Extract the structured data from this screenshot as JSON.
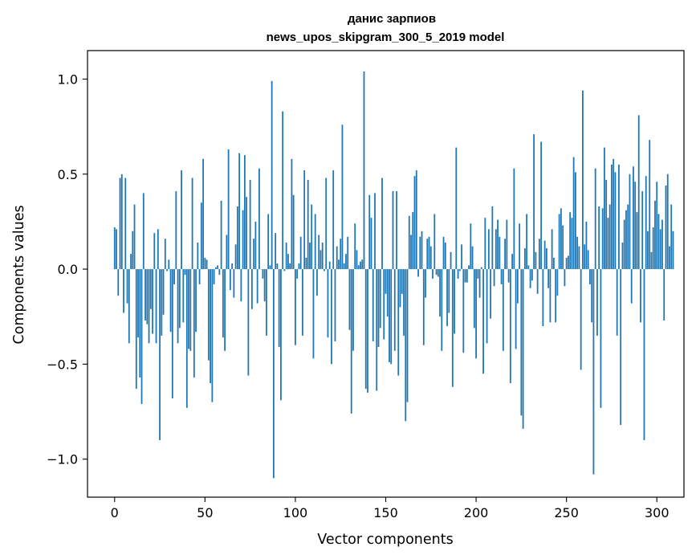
{
  "chart_data": {
    "type": "bar",
    "title_line1": "данис зарпиов",
    "title_line2": "news_upos_skipgram_300_5_2019 model",
    "xlabel": "Vector components",
    "ylabel": "Components values",
    "xlim": [
      -15,
      315
    ],
    "ylim": [
      -1.2,
      1.15
    ],
    "x_ticks": [
      0,
      50,
      100,
      150,
      200,
      250,
      300
    ],
    "y_ticks": [
      {
        "value": 1.0,
        "label": "1.0"
      },
      {
        "value": 0.5,
        "label": "0.5"
      },
      {
        "value": 0.0,
        "label": "0.0"
      },
      {
        "value": -0.5,
        "label": "−0.5"
      },
      {
        "value": -1.0,
        "label": "−1.0"
      }
    ],
    "color": "#1f77b4",
    "values": [
      0.22,
      0.21,
      -0.14,
      0.48,
      0.5,
      -0.23,
      0.48,
      -0.18,
      -0.39,
      0.08,
      0.2,
      0.34,
      -0.63,
      -0.36,
      -0.57,
      -0.71,
      0.4,
      -0.27,
      -0.29,
      -0.39,
      -0.21,
      -0.34,
      0.19,
      -0.39,
      0.21,
      -0.9,
      -0.35,
      -0.24,
      0.16,
      -0.01,
      0.05,
      -0.33,
      -0.68,
      -0.08,
      0.41,
      -0.39,
      -0.31,
      0.52,
      -0.28,
      -0.03,
      -0.73,
      -0.42,
      -0.43,
      0.48,
      -0.57,
      -0.33,
      0.14,
      -0.08,
      0.35,
      0.58,
      0.06,
      0.05,
      -0.48,
      -0.6,
      -0.7,
      -0.08,
      0.01,
      0.02,
      -0.03,
      0.36,
      -0.36,
      -0.43,
      0.18,
      0.63,
      -0.11,
      0.03,
      -0.15,
      0.13,
      0.33,
      0.61,
      -0.17,
      0.31,
      0.6,
      0.38,
      -0.56,
      0.47,
      -0.21,
      0.16,
      0.25,
      -0.18,
      0.53,
      0.0,
      -0.05,
      -0.17,
      -0.35,
      0.29,
      0.02,
      0.99,
      -1.1,
      0.19,
      0.03,
      -0.41,
      -0.69,
      0.83,
      -0.01,
      0.14,
      0.08,
      0.03,
      0.58,
      0.39,
      -0.4,
      -0.05,
      0.03,
      0.17,
      -0.35,
      0.52,
      0.06,
      0.47,
      0.14,
      0.34,
      -0.47,
      0.29,
      -0.14,
      0.18,
      0.1,
      0.14,
      -0.01,
      0.48,
      -0.36,
      0.04,
      -0.5,
      0.52,
      -0.38,
      0.12,
      0.05,
      0.16,
      0.76,
      0.03,
      0.08,
      0.17,
      -0.32,
      -0.76,
      -0.43,
      0.24,
      0.1,
      0.02,
      0.04,
      0.05,
      1.04,
      -0.63,
      -0.65,
      0.39,
      0.27,
      -0.38,
      0.4,
      -0.64,
      -0.41,
      -0.31,
      0.48,
      -0.37,
      -0.13,
      -0.25,
      -0.49,
      -0.5,
      0.41,
      -0.43,
      0.41,
      -0.56,
      -0.2,
      -0.13,
      -0.35,
      -0.8,
      -0.7,
      0.28,
      0.18,
      0.3,
      0.49,
      0.52,
      -0.04,
      0.17,
      0.2,
      -0.4,
      -0.15,
      0.16,
      0.17,
      0.12,
      -0.05,
      0.29,
      -0.03,
      -0.04,
      -0.25,
      -0.43,
      0.17,
      0.14,
      -0.3,
      -0.23,
      0.09,
      -0.62,
      -0.34,
      0.64,
      -0.05,
      -0.01,
      0.13,
      -0.44,
      -0.07,
      -0.07,
      0.02,
      0.24,
      0.12,
      -0.31,
      -0.47,
      -0.05,
      -0.15,
      0.01,
      -0.55,
      0.27,
      -0.39,
      0.21,
      -0.26,
      0.33,
      -0.09,
      0.21,
      0.26,
      0.17,
      -0.08,
      -0.43,
      0.16,
      0.26,
      -0.07,
      -0.6,
      0.08,
      0.53,
      -0.42,
      -0.18,
      0.24,
      -0.77,
      -0.84,
      0.11,
      0.29,
      0.02,
      -0.1,
      -0.06,
      0.71,
      0.09,
      -0.13,
      0.16,
      0.67,
      -0.3,
      0.15,
      0.11,
      -0.1,
      -0.28,
      0.21,
      0.06,
      -0.28,
      -0.14,
      0.29,
      0.32,
      0.23,
      -0.09,
      0.06,
      0.07,
      0.3,
      0.27,
      0.59,
      0.51,
      0.17,
      0.12,
      -0.53,
      0.94,
      0.13,
      0.25,
      0.1,
      -0.08,
      -0.28,
      -1.08,
      0.53,
      -0.35,
      0.33,
      -0.73,
      0.32,
      0.64,
      0.47,
      0.27,
      0.34,
      0.55,
      0.58,
      0.51,
      -0.35,
      0.55,
      -0.82,
      0.14,
      0.26,
      0.31,
      0.34,
      0.5,
      -0.18,
      0.54,
      0.46,
      0.3,
      0.81,
      -0.28,
      0.41,
      -0.9,
      0.49,
      0.2,
      0.68,
      0.09,
      0.22,
      0.36,
      0.46,
      0.29,
      0.21,
      0.26,
      -0.27,
      0.44,
      0.5,
      0.12,
      0.34,
      0.2
    ]
  }
}
